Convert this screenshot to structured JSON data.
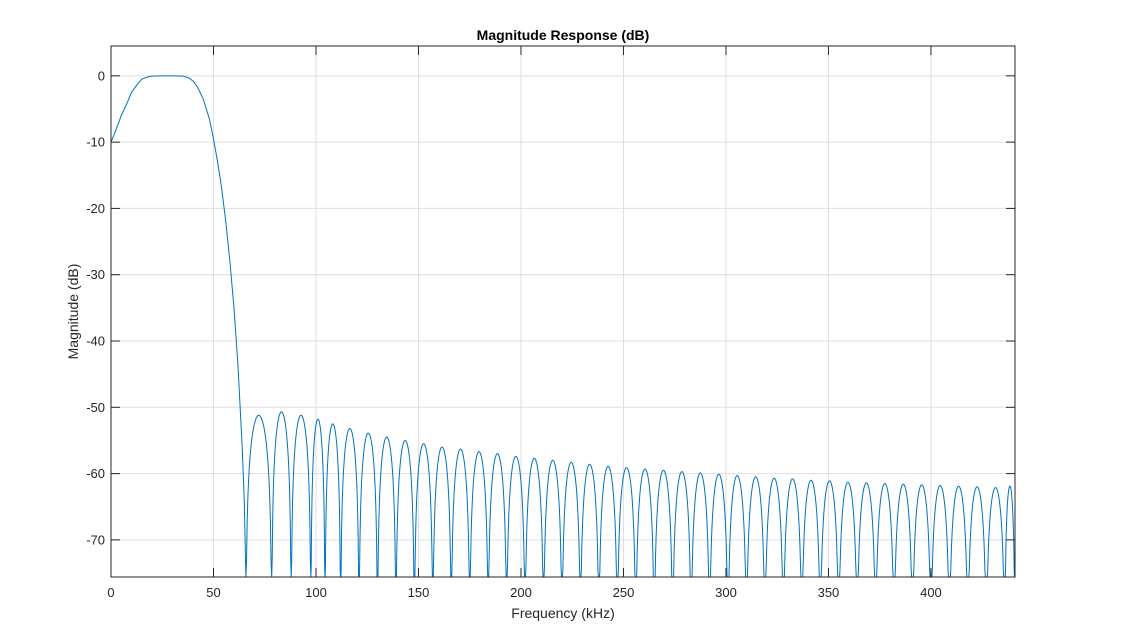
{
  "chart_data": {
    "type": "line",
    "title": "Magnitude Response (dB)",
    "xlabel": "Frequency (kHz)",
    "ylabel": "Magnitude (dB)",
    "xlim": [
      0,
      441
    ],
    "ylim": [
      -75.6,
      4.5
    ],
    "xticks": [
      0,
      50,
      100,
      150,
      200,
      250,
      300,
      350,
      400
    ],
    "xtick_labels": [
      "0",
      "50",
      "100",
      "150",
      "200",
      "250",
      "300",
      "350",
      "400"
    ],
    "yticks": [
      0,
      -10,
      -20,
      -30,
      -40,
      -50,
      -60,
      -70
    ],
    "ytick_labels": [
      "0",
      "-10",
      "-20",
      "-30",
      "-40",
      "-50",
      "-60",
      "-70"
    ],
    "grid": true,
    "line_color": "#0072bd",
    "series": [
      {
        "passband": [
          [
            0,
            -10
          ],
          [
            2,
            -8.5
          ],
          [
            5,
            -6
          ],
          [
            8,
            -4
          ],
          [
            10,
            -2.5
          ],
          [
            13,
            -1.2
          ],
          [
            15,
            -0.5
          ],
          [
            18,
            -0.15
          ],
          [
            20,
            -0.05
          ],
          [
            25,
            0
          ],
          [
            30,
            0
          ],
          [
            35,
            -0.05
          ],
          [
            38,
            -0.3
          ],
          [
            40,
            -0.8
          ],
          [
            42,
            -1.6
          ],
          [
            45,
            -3.5
          ],
          [
            48,
            -6.5
          ],
          [
            50,
            -9.5
          ],
          [
            52,
            -13
          ],
          [
            54,
            -17
          ],
          [
            56,
            -22
          ],
          [
            58,
            -28
          ],
          [
            60,
            -35
          ],
          [
            62,
            -44
          ],
          [
            64,
            -56
          ],
          [
            65,
            -64
          ],
          [
            65.8,
            -75.6
          ]
        ],
        "sidelobe_nulls_khz": [
          65.8,
          78.4,
          87.9,
          97.5,
          104.4,
          112,
          121,
          130,
          139,
          148,
          157,
          166,
          175,
          184,
          193,
          202,
          211,
          220,
          229,
          238,
          247,
          256,
          265,
          274,
          283,
          292,
          301,
          310,
          319,
          328,
          337,
          346,
          355,
          364,
          373,
          382,
          391,
          400,
          409,
          418,
          427,
          436,
          441
        ],
        "sidelobe_peaks_db": [
          -51.2,
          -50.7,
          -51.2,
          -51.8,
          -52.5,
          -53.2,
          -53.9,
          -54.5,
          -55.0,
          -55.5,
          -56.0,
          -56.3,
          -56.7,
          -57.0,
          -57.4,
          -57.7,
          -58.0,
          -58.3,
          -58.6,
          -58.9,
          -59.1,
          -59.3,
          -59.5,
          -59.7,
          -59.9,
          -60.1,
          -60.3,
          -60.5,
          -60.7,
          -60.8,
          -61.0,
          -61.1,
          -61.3,
          -61.4,
          -61.5,
          -61.6,
          -61.7,
          -61.8,
          -61.9,
          -62.0,
          -62.1,
          -61.9
        ]
      }
    ]
  }
}
